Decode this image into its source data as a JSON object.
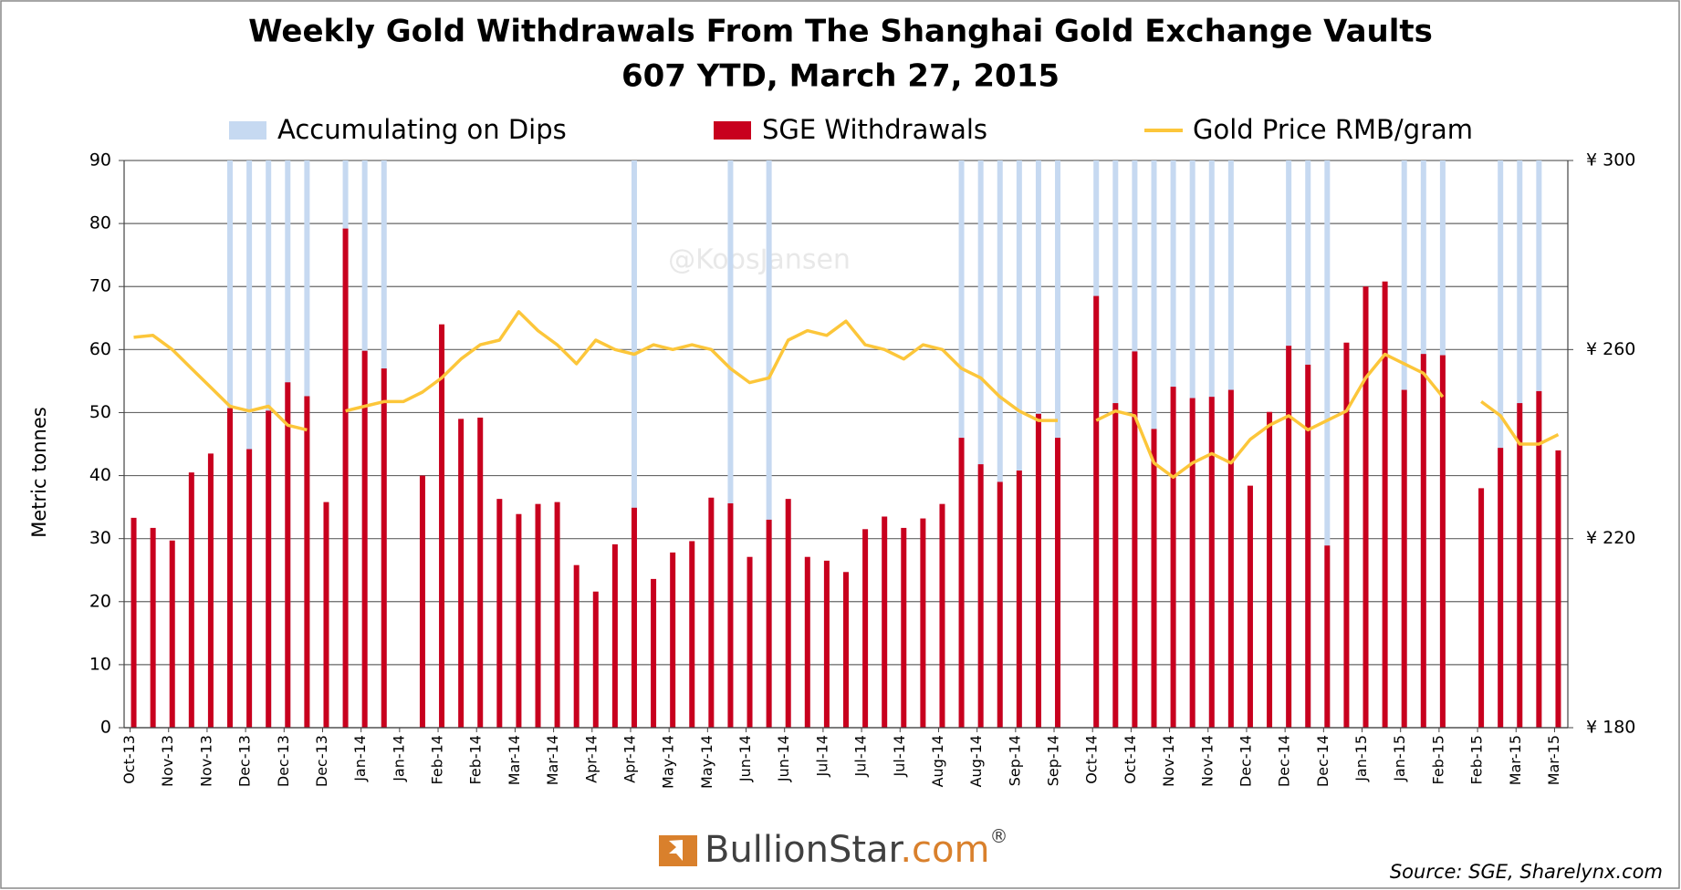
{
  "chart_data": {
    "type": "bar",
    "title": "Weekly Gold Withdrawals From The Shanghai Gold Exchange Vaults",
    "subtitle": "607 YTD, March 27, 2015",
    "ylabel": "Metric tonnes",
    "watermark": "@KoosJansen",
    "logo": {
      "name": "BullionStar",
      "domain": ".com",
      "mark": "®"
    },
    "source": "Source: SGE, Sharelynx.com",
    "categories": [
      "Oct-13",
      null,
      "Nov-13",
      null,
      "Nov-13",
      null,
      "Dec-13",
      null,
      "Dec-13",
      null,
      "Dec-13",
      null,
      "Jan-14",
      null,
      "Jan-14",
      null,
      "Feb-14",
      null,
      "Feb-14",
      null,
      "Mar-14",
      null,
      "Mar-14",
      null,
      "Apr-14",
      null,
      "Apr-14",
      null,
      "May-14",
      null,
      "May-14",
      null,
      "Jun-14",
      null,
      "Jun-14",
      null,
      "Jul-14",
      null,
      "Jul-14",
      null,
      "Jul-14",
      null,
      "Aug-14",
      null,
      "Aug-14",
      null,
      "Sep-14",
      null,
      "Sep-14",
      null,
      "Oct-14",
      null,
      "Oct-14",
      null,
      "Nov-14",
      null,
      "Nov-14",
      null,
      "Dec-14",
      null,
      "Dec-14",
      null,
      "Dec-14",
      null,
      "Jan-15",
      null,
      "Jan-15",
      null,
      "Feb-15",
      null,
      "Feb-15",
      null,
      "Mar-15",
      null,
      "Mar-15"
    ],
    "series": [
      {
        "name": "Accumulating on Dips",
        "color": "#c6d9f1",
        "kind": "bar",
        "values": [
          null,
          null,
          null,
          null,
          null,
          90,
          90,
          90,
          90,
          90,
          null,
          90,
          90,
          90,
          null,
          null,
          null,
          null,
          null,
          null,
          null,
          null,
          null,
          null,
          null,
          null,
          90,
          null,
          null,
          null,
          null,
          90,
          null,
          90,
          null,
          null,
          null,
          null,
          null,
          null,
          null,
          null,
          null,
          90,
          90,
          90,
          90,
          90,
          90,
          null,
          90,
          90,
          90,
          90,
          90,
          90,
          90,
          90,
          null,
          null,
          90,
          90,
          90,
          null,
          null,
          null,
          90,
          90,
          90,
          null,
          null,
          90,
          90,
          90,
          null
        ]
      },
      {
        "name": "SGE Withdrawals",
        "color": "#c8001e",
        "kind": "bar",
        "values": [
          33.3,
          31.7,
          29.7,
          40.5,
          43.5,
          50.7,
          44.2,
          50.3,
          54.8,
          52.6,
          35.8,
          79.2,
          59.8,
          57,
          null,
          40,
          64,
          49,
          49.2,
          36.3,
          33.9,
          35.5,
          35.8,
          25.8,
          21.6,
          29.1,
          34.9,
          23.6,
          27.8,
          29.6,
          36.5,
          35.6,
          27.1,
          33,
          36.3,
          27.1,
          26.5,
          24.7,
          31.5,
          33.5,
          31.7,
          33.2,
          35.5,
          46,
          41.8,
          39,
          40.8,
          49.8,
          46,
          null,
          68.5,
          51.5,
          59.7,
          47.4,
          54.1,
          52.3,
          52.5,
          53.6,
          38.4,
          50.1,
          60.6,
          57.6,
          28.9,
          61.1,
          70,
          70.8,
          53.6,
          59.3,
          59.1,
          null,
          38,
          44.4,
          51.5,
          53.4,
          44
        ]
      },
      {
        "name": "Gold Price RMB/gram",
        "color": "#fcc63a",
        "kind": "line",
        "axis": "y2",
        "values": [
          262.6,
          263,
          260,
          256,
          252,
          248,
          247,
          248,
          244,
          243,
          null,
          247,
          248,
          249,
          249,
          251,
          254,
          258,
          261,
          262,
          268,
          264,
          261,
          257,
          262,
          260,
          259,
          261,
          260,
          261,
          260,
          256,
          253,
          254,
          262,
          264,
          263,
          266,
          261,
          260,
          258,
          261,
          260,
          256,
          254,
          250,
          247,
          245,
          245,
          null,
          245,
          247,
          246,
          236,
          233,
          236,
          238,
          236,
          241,
          244,
          246,
          243,
          245,
          247,
          254,
          259,
          257,
          255,
          250,
          null,
          249,
          246,
          240,
          240,
          242
        ]
      }
    ],
    "ylim": [
      0,
      90
    ],
    "yticks": [
      0,
      10,
      20,
      30,
      40,
      50,
      60,
      70,
      80,
      90
    ],
    "y2lim": [
      180,
      300
    ],
    "y2ticks": [
      {
        "value": 180,
        "label": "¥ 180"
      },
      {
        "value": 220,
        "label": "¥ 220"
      },
      {
        "value": 260,
        "label": "¥ 260"
      },
      {
        "value": 300,
        "label": "¥ 300"
      }
    ],
    "grid": true,
    "legend": "top"
  }
}
